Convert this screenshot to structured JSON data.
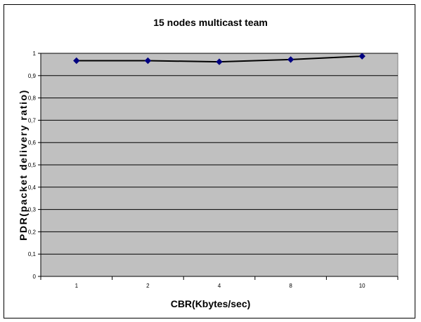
{
  "chart_data": {
    "type": "line",
    "title": "15 nodes multicast team",
    "xlabel": "CBR(Kbytes/sec)",
    "ylabel": "PDR(packet delivery ratio)",
    "categories": [
      "1",
      "2",
      "4",
      "8",
      "10"
    ],
    "series": [
      {
        "values": [
          0.967,
          0.967,
          0.962,
          0.972,
          0.987
        ]
      }
    ],
    "ylim": [
      0,
      1
    ],
    "yticks": [
      "0",
      "0,1",
      "0,2",
      "0,3",
      "0,4",
      "0,5",
      "0,6",
      "0,7",
      "0,8",
      "0,9",
      "1"
    ],
    "grid": true,
    "plot_background": "#c0c0c0",
    "line_color": "#000000",
    "marker_color": "#000080",
    "marker": "diamond"
  }
}
